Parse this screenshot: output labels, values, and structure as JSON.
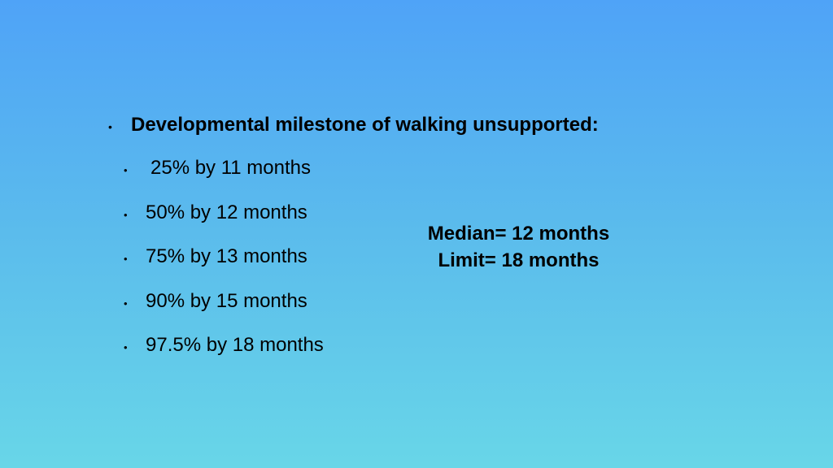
{
  "slide": {
    "heading": "Developmental milestone of walking unsupported:",
    "items": [
      "25% by 11 months",
      "50% by 12 months",
      "75% by 13 months",
      "90% by 15 months",
      "97.5% by 18 months"
    ],
    "median": "Median= 12 months",
    "limit": "Limit= 18 months"
  }
}
